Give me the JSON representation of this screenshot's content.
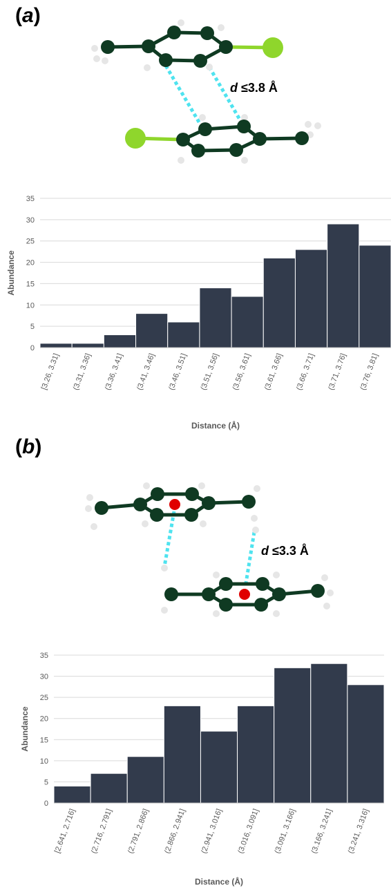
{
  "panels": [
    {
      "label_open": "(",
      "label_letter": "a",
      "label_close": ")",
      "distance_var": "d",
      "distance_rest": " ≤3.8 Å"
    },
    {
      "label_open": "(",
      "label_letter": "b",
      "label_close": ")",
      "distance_var": "d",
      "distance_rest": " ≤3.3 Å"
    }
  ],
  "colors": {
    "bar": "#323b4c",
    "atom_carbon": "#0f3a22",
    "atom_hydrogen": "#e6e6e6",
    "atom_chlorine": "#8fd62c",
    "centroid": "#e00000",
    "contact": "#4fe3ef",
    "grid": "#d9d9d9"
  },
  "chart_data": [
    {
      "type": "bar",
      "xlabel": "Distance (Å)",
      "ylabel": "Abundance",
      "ylim": [
        0,
        35
      ],
      "yticks": [
        0,
        5,
        10,
        15,
        20,
        25,
        30,
        35
      ],
      "grid": true,
      "categories": [
        "[3.26, 3.31]",
        "(3.31, 3.36]",
        "(3.36, 3.41]",
        "(3.41, 3.46]",
        "(3.46, 3.51]",
        "(3.51, 3.56]",
        "(3.56, 3.61]",
        "(3.61, 3.66]",
        "(3.66, 3.71]",
        "(3.71, 3.76]",
        "(3.76, 3.81]"
      ],
      "values": [
        1,
        1,
        3,
        8,
        6,
        14,
        12,
        21,
        23,
        29,
        24
      ]
    },
    {
      "type": "bar",
      "xlabel": "Distance (Å)",
      "ylabel": "Abundance",
      "ylim": [
        0,
        35
      ],
      "yticks": [
        0,
        5,
        10,
        15,
        20,
        25,
        30,
        35
      ],
      "grid": true,
      "categories": [
        "[2.641, 2.716]",
        "(2.716, 2.791]",
        "(2.791, 2.866]",
        "(2.866, 2.941]",
        "(2.941, 3.016]",
        "(3.016, 3.091]",
        "(3.091, 3.166]",
        "(3.166, 3.241]",
        "(3.241, 3.316]"
      ],
      "values": [
        4,
        7,
        11,
        23,
        17,
        23,
        32,
        33,
        28
      ]
    }
  ]
}
